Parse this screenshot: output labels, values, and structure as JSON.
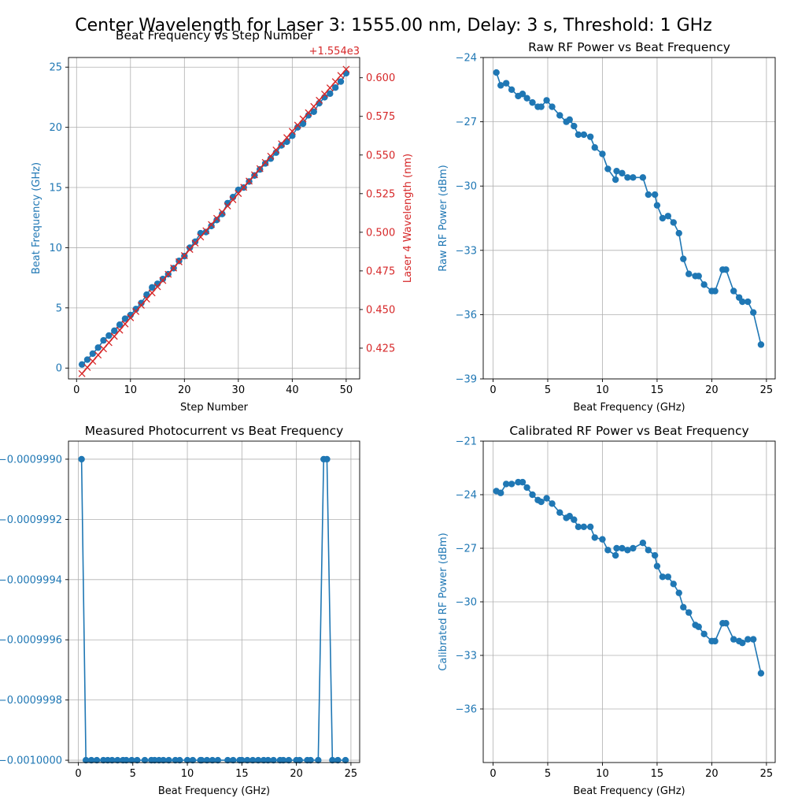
{
  "figure_title": "Center Wavelength for Laser 3: 1555.00 nm, Delay: 3 s, Threshold: 1 GHz",
  "colors": {
    "blue": "#1f77b4",
    "red": "#d62728",
    "grid": "#b0b0b0"
  },
  "chart_data": [
    {
      "id": "beat_vs_step",
      "type": "line",
      "title": "Beat Frequency vs Step Number",
      "xlabel": "Step Number",
      "ylabel": "Beat Frequency (GHz)",
      "y2label": "Laser 4 Wavelength (nm)",
      "y2_offset_text": "+1.554e3",
      "xlim": [
        -1.5,
        52.5
      ],
      "ylim": [
        -0.9,
        25.8
      ],
      "y2lim": [
        1554.4051,
        1554.6131
      ],
      "xticks": [
        0,
        10,
        20,
        30,
        40,
        50
      ],
      "yticks": [
        0,
        5,
        10,
        15,
        20,
        25
      ],
      "y2ticks": [
        1554.425,
        1554.45,
        1554.475,
        1554.5,
        1554.525,
        1554.55,
        1554.575,
        1554.6
      ],
      "y2ticklabels": [
        "0.425",
        "0.450",
        "0.475",
        "0.500",
        "0.525",
        "0.550",
        "0.575",
        "0.600"
      ],
      "grid": true,
      "series": [
        {
          "axis": "left",
          "marker": "circle",
          "color": "#1f77b4",
          "x": [
            1,
            2,
            3,
            4,
            5,
            6,
            7,
            8,
            9,
            10,
            11,
            12,
            13,
            14,
            15,
            16,
            17,
            18,
            19,
            20,
            21,
            22,
            23,
            24,
            25,
            26,
            27,
            28,
            29,
            30,
            31,
            32,
            33,
            34,
            35,
            36,
            37,
            38,
            39,
            40,
            41,
            42,
            43,
            44,
            45,
            46,
            47,
            48,
            49,
            50
          ],
          "y": [
            0.3,
            0.7,
            1.2,
            1.7,
            2.3,
            2.7,
            3.1,
            3.6,
            4.1,
            4.4,
            4.9,
            5.4,
            6.1,
            6.7,
            7.0,
            7.4,
            7.8,
            8.3,
            8.9,
            9.3,
            10.0,
            10.5,
            11.2,
            11.3,
            11.8,
            12.3,
            12.8,
            13.7,
            14.2,
            14.8,
            15.0,
            15.5,
            16.0,
            16.5,
            17.0,
            17.4,
            17.9,
            18.5,
            18.8,
            19.3,
            20.0,
            20.3,
            21.0,
            21.3,
            22.0,
            22.5,
            22.8,
            23.3,
            23.8,
            24.5
          ]
        },
        {
          "axis": "right",
          "marker": "x",
          "color": "#d62728",
          "x": [
            1,
            50
          ],
          "y": [
            1554.4085,
            1554.6055
          ]
        }
      ]
    },
    {
      "id": "raw_rf",
      "type": "line",
      "title": "Raw RF Power vs Beat Frequency",
      "xlabel": "Beat Frequency (GHz)",
      "ylabel": "Raw RF Power (dBm)",
      "xlim": [
        -0.9,
        25.8
      ],
      "ylim": [
        -39,
        -24
      ],
      "xticks": [
        0,
        5,
        10,
        15,
        20,
        25
      ],
      "yticks": [
        -39,
        -36,
        -33,
        -30,
        -27,
        -24
      ],
      "grid": true,
      "series": [
        {
          "marker": "circle",
          "color": "#1f77b4",
          "x": [
            0.3,
            0.7,
            1.2,
            1.7,
            2.3,
            2.7,
            3.1,
            3.6,
            4.1,
            4.4,
            4.9,
            5.4,
            6.1,
            6.7,
            7.0,
            7.4,
            7.8,
            8.3,
            8.9,
            9.3,
            10.0,
            10.5,
            11.2,
            11.3,
            11.8,
            12.3,
            12.8,
            13.7,
            14.2,
            14.8,
            15.0,
            15.5,
            16.0,
            16.5,
            17.0,
            17.4,
            17.9,
            18.5,
            18.8,
            19.3,
            20.0,
            20.3,
            21.0,
            21.3,
            22.0,
            22.5,
            22.8,
            23.3,
            23.8,
            24.5
          ],
          "y": [
            -24.7,
            -25.3,
            -25.2,
            -25.5,
            -25.8,
            -25.7,
            -25.9,
            -26.1,
            -26.3,
            -26.3,
            -26.0,
            -26.3,
            -26.7,
            -27.0,
            -26.9,
            -27.2,
            -27.6,
            -27.6,
            -27.7,
            -28.2,
            -28.5,
            -29.2,
            -29.7,
            -29.3,
            -29.4,
            -29.6,
            -29.6,
            -29.6,
            -30.4,
            -30.4,
            -30.9,
            -31.5,
            -31.4,
            -31.7,
            -32.2,
            -33.4,
            -34.1,
            -34.2,
            -34.2,
            -34.6,
            -34.9,
            -34.9,
            -33.9,
            -33.9,
            -34.9,
            -35.2,
            -35.4,
            -35.4,
            -35.9,
            -37.4
          ]
        }
      ]
    },
    {
      "id": "photocurrent",
      "type": "line",
      "title": "Measured Photocurrent vs Beat Frequency",
      "xlabel": "Beat Frequency (GHz)",
      "ylabel": "",
      "xlim": [
        -0.9,
        25.8
      ],
      "ylim": [
        -1.00000765,
        -0.99894
      ],
      "xticks": [
        0,
        5,
        10,
        15,
        20,
        25
      ],
      "yticks": [
        -1.0,
        -0.9998,
        -0.9996,
        -0.9994,
        -0.9992,
        -0.999
      ],
      "yticklabels": [
        "−0.0010000",
        "−0.0009998",
        "−0.0009996",
        "−0.0009994",
        "−0.0009992",
        "−0.0009990"
      ],
      "grid": true,
      "series": [
        {
          "marker": "circle",
          "color": "#1f77b4",
          "x": [
            0.3,
            0.7,
            1.2,
            1.7,
            2.3,
            2.7,
            3.1,
            3.6,
            4.1,
            4.4,
            4.9,
            5.4,
            6.1,
            6.7,
            7.0,
            7.4,
            7.8,
            8.3,
            8.9,
            9.3,
            10.0,
            10.5,
            11.2,
            11.3,
            11.8,
            12.3,
            12.8,
            13.7,
            14.2,
            14.8,
            15.0,
            15.5,
            16.0,
            16.5,
            17.0,
            17.4,
            17.9,
            18.5,
            18.8,
            19.3,
            20.0,
            20.3,
            21.0,
            21.3,
            22.0,
            22.5,
            22.8,
            23.3,
            23.8,
            24.5
          ],
          "y": [
            -0.999,
            -1.0,
            -1.0,
            -1.0,
            -1.0,
            -1.0,
            -1.0,
            -1.0,
            -1.0,
            -1.0,
            -1.0,
            -1.0,
            -1.0,
            -1.0,
            -1.0,
            -1.0,
            -1.0,
            -1.0,
            -1.0,
            -1.0,
            -1.0,
            -1.0,
            -1.0,
            -1.0,
            -1.0,
            -1.0,
            -1.0,
            -1.0,
            -1.0,
            -1.0,
            -1.0,
            -1.0,
            -1.0,
            -1.0,
            -1.0,
            -1.0,
            -1.0,
            -1.0,
            -1.0,
            -1.0,
            -1.0,
            -1.0,
            -1.0,
            -1.0,
            -1.0,
            -0.999,
            -0.999,
            -1.0,
            -1.0,
            -1.0
          ]
        }
      ]
    },
    {
      "id": "cal_rf",
      "type": "line",
      "title": "Calibrated RF Power vs Beat Frequency",
      "xlabel": "Beat Frequency (GHz)",
      "ylabel": "Calibrated RF Power (dBm)",
      "xlim": [
        -0.9,
        25.8
      ],
      "ylim": [
        -39,
        -21
      ],
      "xticks": [
        0,
        5,
        10,
        15,
        20,
        25
      ],
      "yticks": [
        -36,
        -33,
        -30,
        -27,
        -24,
        -21
      ],
      "grid": true,
      "series": [
        {
          "marker": "circle",
          "color": "#1f77b4",
          "x": [
            0.3,
            0.7,
            1.2,
            1.7,
            2.3,
            2.7,
            3.1,
            3.6,
            4.1,
            4.4,
            4.9,
            5.4,
            6.1,
            6.7,
            7.0,
            7.4,
            7.8,
            8.3,
            8.9,
            9.3,
            10.0,
            10.5,
            11.2,
            11.3,
            11.8,
            12.3,
            12.8,
            13.7,
            14.2,
            14.8,
            15.0,
            15.5,
            16.0,
            16.5,
            17.0,
            17.4,
            17.9,
            18.5,
            18.8,
            19.3,
            20.0,
            20.3,
            21.0,
            21.3,
            22.0,
            22.5,
            22.8,
            23.3,
            23.8,
            24.5
          ],
          "y": [
            -23.8,
            -23.9,
            -23.4,
            -23.4,
            -23.3,
            -23.3,
            -23.6,
            -24.0,
            -24.3,
            -24.4,
            -24.2,
            -24.5,
            -25.0,
            -25.3,
            -25.2,
            -25.4,
            -25.8,
            -25.8,
            -25.8,
            -26.4,
            -26.5,
            -27.1,
            -27.4,
            -27.0,
            -27.0,
            -27.1,
            -27.0,
            -26.7,
            -27.1,
            -27.4,
            -28.0,
            -28.6,
            -28.6,
            -29.0,
            -29.5,
            -30.3,
            -30.6,
            -31.3,
            -31.4,
            -31.8,
            -32.2,
            -32.2,
            -31.2,
            -31.2,
            -32.1,
            -32.2,
            -32.3,
            -32.1,
            -32.1,
            -34.0
          ]
        }
      ]
    }
  ]
}
